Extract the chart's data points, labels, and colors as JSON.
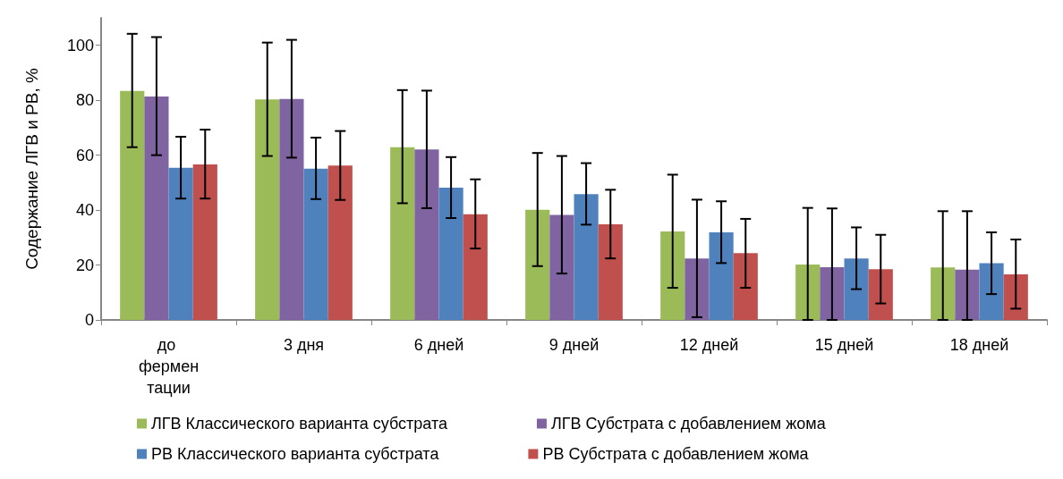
{
  "chart_data": {
    "type": "bar",
    "ylabel": "Содержание ЛГВ и РВ, %",
    "categories": [
      "до ферментации",
      "3 дня",
      "6 дней",
      "9 дней",
      "12 дней",
      "15 дней",
      "18 дней"
    ],
    "series": [
      {
        "name": "ЛГВ Классического варианта субстрата",
        "color": "#9bbb59",
        "values": [
          83.4,
          80.3,
          62.9,
          40.1,
          32.2,
          20.2,
          19.1
        ],
        "errors": [
          [
            62.9,
            104.2
          ],
          [
            59.7,
            101
          ],
          [
            42.5,
            83.7
          ],
          [
            19.6,
            60.8
          ],
          [
            11.7,
            52.9
          ],
          [
            0,
            40.8
          ],
          [
            0,
            39.6
          ]
        ]
      },
      {
        "name": "ЛГВ Субстрата с добавлением жома",
        "color": "#8064a2",
        "values": [
          81.4,
          80.5,
          62.1,
          38.2,
          22.4,
          19.2,
          18.3
        ],
        "errors": [
          [
            60,
            103
          ],
          [
            59.1,
            102
          ],
          [
            40.7,
            83.5
          ],
          [
            16.9,
            59.7
          ],
          [
            1,
            43.8
          ],
          [
            0,
            40.6
          ],
          [
            0,
            39.6
          ]
        ]
      },
      {
        "name": "РВ Классического варианта субстрата",
        "color": "#4f81bd",
        "values": [
          55.4,
          55.1,
          48.2,
          45.8,
          31.9,
          22.4,
          20.7
        ],
        "errors": [
          [
            44.2,
            66.7
          ],
          [
            44,
            66.4
          ],
          [
            37.1,
            59.3
          ],
          [
            34.7,
            57.1
          ],
          [
            20.7,
            43.2
          ],
          [
            11.2,
            33.7
          ],
          [
            9.4,
            31.9
          ]
        ]
      },
      {
        "name": "РВ Субстрата с добавлением жома",
        "color": "#c0504d",
        "values": [
          56.6,
          56.2,
          38.5,
          34.8,
          24.3,
          18.5,
          16.6
        ],
        "errors": [
          [
            44.2,
            69.3
          ],
          [
            43.7,
            68.8
          ],
          [
            26,
            51.2
          ],
          [
            22.4,
            47.4
          ],
          [
            11.7,
            36.8
          ],
          [
            6,
            31
          ],
          [
            4.1,
            29.3
          ]
        ]
      }
    ],
    "ylim": [
      0,
      110
    ],
    "yticks": [
      0,
      20,
      40,
      60,
      80,
      100
    ],
    "grid": false,
    "legend": "bottom"
  }
}
